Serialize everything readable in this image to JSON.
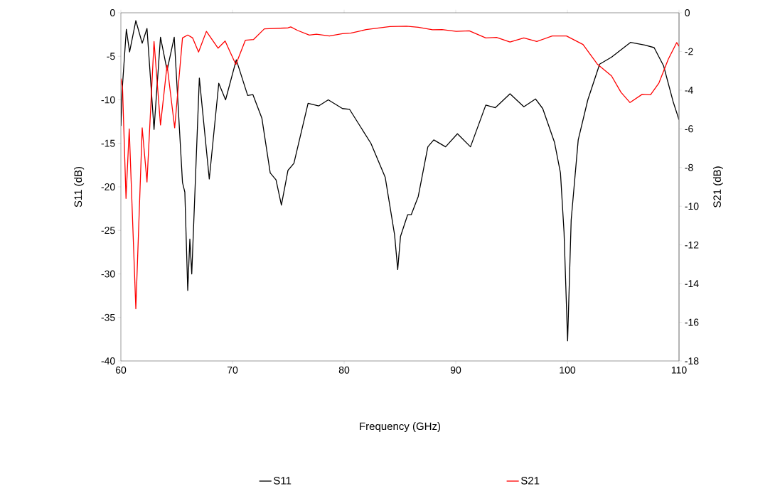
{
  "chart_data": {
    "type": "line",
    "xlabel": "Frequency (GHz)",
    "ylabel": "S11 (dB)",
    "y2label": "S21 (dB)",
    "xlim": [
      60,
      110
    ],
    "xticks": [
      60,
      70,
      80,
      90,
      100,
      110
    ],
    "ylim": [
      -40,
      0
    ],
    "yticks": [
      -40,
      -35,
      -30,
      -25,
      -20,
      -15,
      -10,
      -5,
      0
    ],
    "y2lim": [
      -18,
      0
    ],
    "y2ticks": [
      -18,
      -16,
      -14,
      -12,
      -10,
      -8,
      -6,
      -4,
      -2,
      0
    ],
    "legend": "bottom",
    "marker": "none",
    "line_style": "solid",
    "series": [
      {
        "name": "S11",
        "color": "#000000",
        "axis": "y",
        "x": [
          60.0,
          60.11,
          60.49,
          60.78,
          61.34,
          61.91,
          62.34,
          62.97,
          63.55,
          64.14,
          64.78,
          65.52,
          65.73,
          65.99,
          66.18,
          66.35,
          67.03,
          67.92,
          68.77,
          69.38,
          70.34,
          71.36,
          71.83,
          72.63,
          73.38,
          73.9,
          74.38,
          74.97,
          75.5,
          76.77,
          77.73,
          78.58,
          79.85,
          80.49,
          82.4,
          83.68,
          84.52,
          84.8,
          85.05,
          85.69,
          86.01,
          86.64,
          87.5,
          88.03,
          89.09,
          90.15,
          91.32,
          92.69,
          93.55,
          94.86,
          96.1,
          97.15,
          97.79,
          98.85,
          99.38,
          99.7,
          100.02,
          100.34,
          100.97,
          101.83,
          102.89,
          103.95,
          105.65,
          106.92,
          107.77,
          108.62,
          109.47,
          110.0
        ],
        "values": [
          -13.0,
          -9.0,
          -1.9,
          -4.5,
          -0.9,
          -3.5,
          -1.8,
          -13.4,
          -2.8,
          -6.6,
          -2.8,
          -19.5,
          -20.6,
          -31.9,
          -26.0,
          -30.0,
          -7.5,
          -19.1,
          -8.1,
          -10.0,
          -5.4,
          -9.5,
          -9.4,
          -12.1,
          -18.4,
          -19.2,
          -22.1,
          -18.1,
          -17.3,
          -10.4,
          -10.7,
          -10.0,
          -11.0,
          -11.1,
          -15.0,
          -18.9,
          -25.5,
          -29.5,
          -25.7,
          -23.2,
          -23.2,
          -21.1,
          -15.4,
          -14.6,
          -15.4,
          -13.9,
          -15.4,
          -10.6,
          -10.9,
          -9.3,
          -10.8,
          -9.9,
          -11.0,
          -14.9,
          -18.4,
          -25.2,
          -37.7,
          -23.8,
          -14.6,
          -10.0,
          -5.9,
          -5.1,
          -3.4,
          -3.7,
          -4.0,
          -6.1,
          -10.2,
          -12.3
        ]
      },
      {
        "name": "S21",
        "color": "#ff0000",
        "axis": "y2",
        "x": [
          60.0,
          60.15,
          60.46,
          60.75,
          61.34,
          61.91,
          62.34,
          62.97,
          63.55,
          64.14,
          64.82,
          65.52,
          65.99,
          66.43,
          66.96,
          67.66,
          68.71,
          69.34,
          70.3,
          71.15,
          71.89,
          72.85,
          74.97,
          75.22,
          75.82,
          76.88,
          77.52,
          78.68,
          79.85,
          80.59,
          81.97,
          84.1,
          85.59,
          86.64,
          87.92,
          88.77,
          90.04,
          91.21,
          92.69,
          93.65,
          94.86,
          96.1,
          97.26,
          98.64,
          99.92,
          101.4,
          102.68,
          103.95,
          104.8,
          105.61,
          106.71,
          107.45,
          108.2,
          109.04,
          109.79,
          110.0
        ],
        "values": [
          -3.4,
          -3.9,
          -9.6,
          -6.0,
          -15.3,
          -5.95,
          -8.75,
          -1.48,
          -5.8,
          -2.7,
          -5.95,
          -1.3,
          -1.15,
          -1.3,
          -2.03,
          -0.96,
          -1.83,
          -1.46,
          -2.67,
          -1.42,
          -1.38,
          -0.83,
          -0.78,
          -0.73,
          -0.91,
          -1.15,
          -1.11,
          -1.2,
          -1.08,
          -1.05,
          -0.87,
          -0.71,
          -0.69,
          -0.75,
          -0.88,
          -0.87,
          -0.96,
          -0.93,
          -1.3,
          -1.27,
          -1.51,
          -1.3,
          -1.48,
          -1.2,
          -1.2,
          -1.64,
          -2.65,
          -3.26,
          -4.11,
          -4.64,
          -4.21,
          -4.24,
          -3.63,
          -2.4,
          -1.54,
          -1.73
        ]
      }
    ]
  }
}
